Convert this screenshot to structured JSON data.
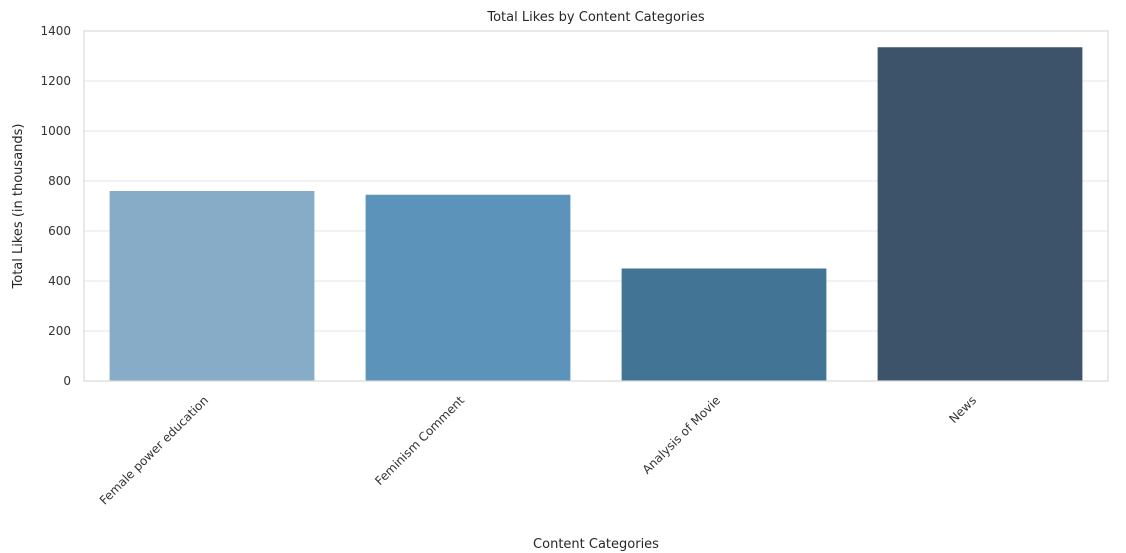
{
  "chart_data": {
    "type": "bar",
    "title": "Total Likes by Content Categories",
    "xlabel": "Content Categories",
    "ylabel": "Total Likes (in thousands)",
    "categories": [
      "Female power education",
      "Feminism Comment",
      "Analysis of Movie",
      "News"
    ],
    "values": [
      760,
      745,
      450,
      1335
    ],
    "colors": [
      "#86acc8",
      "#5c93ba",
      "#427496",
      "#3d5369"
    ],
    "ylim": [
      0,
      1400
    ],
    "yticks": [
      0,
      200,
      400,
      600,
      800,
      1000,
      1200,
      1400
    ],
    "grid": true
  }
}
